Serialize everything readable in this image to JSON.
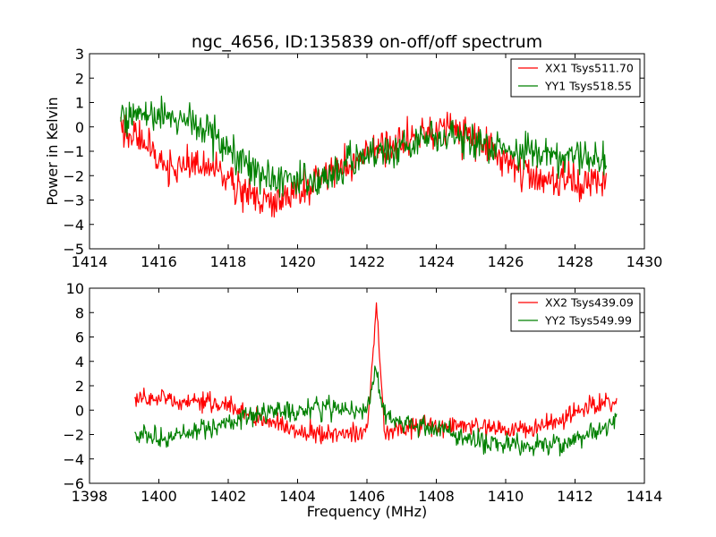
{
  "chart_data": [
    {
      "type": "line",
      "title": "ngc_4656, ID:135839 on-off/off spectrum",
      "xlabel": "",
      "ylabel": "Power in Kelvin",
      "xlim": [
        1414,
        1430
      ],
      "ylim": [
        -5,
        3
      ],
      "xticks": [
        "1414",
        "1416",
        "1418",
        "1420",
        "1422",
        "1424",
        "1426",
        "1428",
        "1430"
      ],
      "yticks": [
        "−5",
        "−4",
        "−3",
        "−2",
        "−1",
        "0",
        "1",
        "2",
        "3"
      ],
      "legend_position": "top-right",
      "series": [
        {
          "name": "XX1 Tsys511.70",
          "color": "#ff0000",
          "x": [
            1414.9,
            1415.5,
            1416.0,
            1416.5,
            1417.0,
            1417.5,
            1418.0,
            1418.5,
            1419.0,
            1419.5,
            1420.0,
            1420.5,
            1421.0,
            1421.5,
            1422.0,
            1422.5,
            1423.0,
            1423.5,
            1424.0,
            1424.5,
            1425.0,
            1425.5,
            1426.0,
            1426.5,
            1427.0,
            1427.5,
            1428.0,
            1428.5,
            1428.9
          ],
          "y": [
            -0.2,
            -0.5,
            -1.3,
            -1.8,
            -1.6,
            -1.7,
            -2.2,
            -2.6,
            -3.0,
            -3.0,
            -2.7,
            -2.3,
            -1.9,
            -1.5,
            -1.1,
            -0.8,
            -0.5,
            -0.3,
            -0.2,
            -0.2,
            -0.4,
            -0.8,
            -1.3,
            -1.8,
            -2.2,
            -2.3,
            -2.3,
            -2.3,
            -2.2
          ],
          "noise": 0.65
        },
        {
          "name": "YY1 Tsys518.55",
          "color": "#008000",
          "x": [
            1414.9,
            1415.5,
            1416.0,
            1416.5,
            1417.0,
            1417.5,
            1418.0,
            1418.5,
            1419.0,
            1419.5,
            1420.0,
            1420.5,
            1421.0,
            1421.5,
            1422.0,
            1422.5,
            1423.0,
            1423.5,
            1424.0,
            1424.5,
            1425.0,
            1425.5,
            1426.0,
            1426.5,
            1427.0,
            1427.5,
            1428.0,
            1428.5,
            1428.9
          ],
          "y": [
            0.3,
            0.5,
            0.4,
            0.3,
            0.2,
            -0.3,
            -1.0,
            -1.6,
            -2.0,
            -2.2,
            -2.3,
            -2.2,
            -1.9,
            -1.5,
            -1.2,
            -1.0,
            -0.7,
            -0.5,
            -0.4,
            -0.4,
            -0.5,
            -0.7,
            -0.9,
            -1.0,
            -1.1,
            -1.2,
            -1.3,
            -1.3,
            -1.3
          ],
          "noise": 0.65
        }
      ]
    },
    {
      "type": "line",
      "title": "",
      "xlabel": "Frequency (MHz)",
      "ylabel": "",
      "xlim": [
        1398,
        1414
      ],
      "ylim": [
        -6,
        10
      ],
      "xticks": [
        "1398",
        "1400",
        "1402",
        "1404",
        "1406",
        "1408",
        "1410",
        "1412",
        "1414"
      ],
      "yticks": [
        "−6",
        "−4",
        "−2",
        "0",
        "2",
        "4",
        "6",
        "8",
        "10"
      ],
      "legend_position": "top-right",
      "series": [
        {
          "name": "XX2 Tsys439.09",
          "color": "#ff0000",
          "x": [
            1399.3,
            1400.0,
            1400.5,
            1401.0,
            1401.5,
            1402.0,
            1402.5,
            1403.0,
            1403.5,
            1404.0,
            1404.5,
            1405.0,
            1405.5,
            1406.0,
            1406.27,
            1406.5,
            1407.0,
            1407.5,
            1408.0,
            1408.5,
            1409.0,
            1409.5,
            1410.0,
            1410.5,
            1411.0,
            1411.5,
            1412.0,
            1412.5,
            1413.2
          ],
          "y": [
            0.9,
            1.0,
            0.9,
            0.8,
            0.6,
            0.2,
            -0.3,
            -0.8,
            -1.3,
            -1.7,
            -1.9,
            -2.0,
            -2.0,
            -1.9,
            8.8,
            -1.7,
            -1.5,
            -1.3,
            -1.3,
            -1.3,
            -1.4,
            -1.5,
            -1.6,
            -1.6,
            -1.4,
            -0.9,
            -0.2,
            0.4,
            0.6
          ],
          "noise": 0.7
        },
        {
          "name": "YY2 Tsys549.99",
          "color": "#008000",
          "x": [
            1399.3,
            1400.0,
            1400.5,
            1401.0,
            1401.5,
            1402.0,
            1402.5,
            1403.0,
            1403.5,
            1404.0,
            1404.5,
            1405.0,
            1405.5,
            1406.0,
            1406.25,
            1406.5,
            1407.0,
            1407.5,
            1408.0,
            1408.5,
            1409.0,
            1409.5,
            1410.0,
            1410.5,
            1411.0,
            1411.5,
            1412.0,
            1412.5,
            1413.2
          ],
          "y": [
            -2.0,
            -2.3,
            -2.2,
            -1.9,
            -1.5,
            -1.0,
            -0.6,
            -0.3,
            -0.1,
            0.0,
            0.1,
            0.1,
            0.0,
            -0.1,
            3.4,
            -0.4,
            -0.8,
            -1.2,
            -1.6,
            -2.0,
            -2.4,
            -2.6,
            -2.8,
            -2.9,
            -3.0,
            -2.8,
            -2.5,
            -1.8,
            -0.9
          ],
          "noise": 0.75
        }
      ]
    }
  ]
}
